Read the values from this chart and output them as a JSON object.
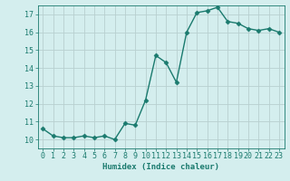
{
  "x": [
    0,
    1,
    2,
    3,
    4,
    5,
    6,
    7,
    8,
    9,
    10,
    11,
    12,
    13,
    14,
    15,
    16,
    17,
    18,
    19,
    20,
    21,
    22,
    23
  ],
  "y": [
    10.6,
    10.2,
    10.1,
    10.1,
    10.2,
    10.1,
    10.2,
    10.0,
    10.9,
    10.8,
    12.2,
    14.7,
    14.3,
    13.2,
    16.0,
    17.1,
    17.2,
    17.4,
    16.6,
    16.5,
    16.2,
    16.1,
    16.2,
    16.0
  ],
  "line_color": "#1a7a6e",
  "marker": "D",
  "marker_size": 2.5,
  "xlabel": "Humidex (Indice chaleur)",
  "xlim": [
    -0.5,
    23.5
  ],
  "ylim": [
    9.5,
    17.5
  ],
  "yticks": [
    10,
    11,
    12,
    13,
    14,
    15,
    16,
    17
  ],
  "xticks": [
    0,
    1,
    2,
    3,
    4,
    5,
    6,
    7,
    8,
    9,
    10,
    11,
    12,
    13,
    14,
    15,
    16,
    17,
    18,
    19,
    20,
    21,
    22,
    23
  ],
  "background_color": "#d4eeee",
  "grid_color": "#b8d0d0",
  "tick_color": "#1a7a6e",
  "label_color": "#1a7a6e",
  "xlabel_fontsize": 6.5,
  "tick_fontsize": 6.0,
  "linewidth": 1.0
}
